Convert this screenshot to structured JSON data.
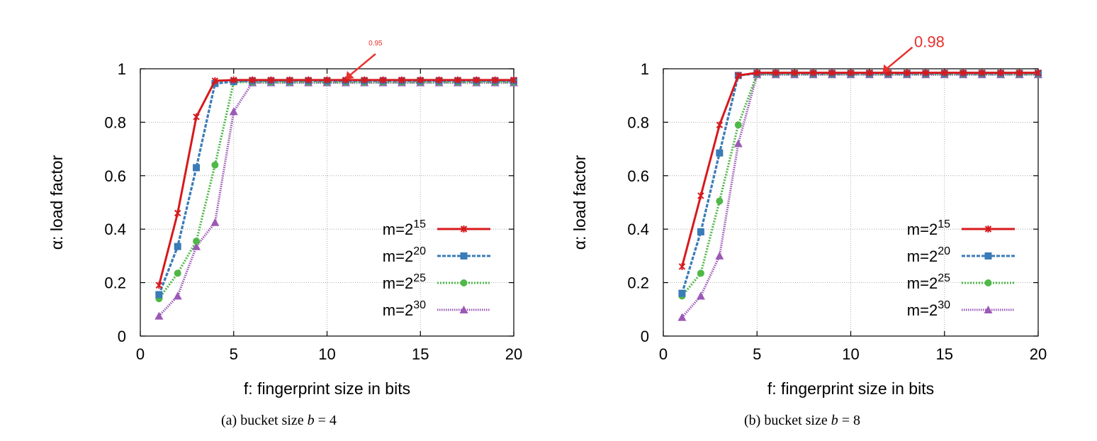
{
  "colors": {
    "m15": "#d7191c",
    "m20": "#3a7bb8",
    "m25": "#4fb848",
    "m30": "#9b59b6",
    "annotation": "#e8312f",
    "grid": "#9a9a9a",
    "axis": "#000000"
  },
  "chart_data": [
    {
      "type": "line",
      "id": "a",
      "xlabel": "f: fingerprint size in bits",
      "ylabel": "α: load factor",
      "xlim": [
        0,
        20
      ],
      "ylim": [
        0,
        1
      ],
      "xticks": [
        "0",
        "5",
        "10",
        "15",
        "20"
      ],
      "yticks": [
        "0",
        "0.2",
        "0.4",
        "0.6",
        "0.8",
        "1"
      ],
      "grid": true,
      "legend_position": "bottom-right",
      "caption": {
        "prefix": "(a)  bucket size ",
        "var": "b",
        "suffix": " = 4"
      },
      "annotation": {
        "text": "0.95",
        "x": 11,
        "y": 0.96
      },
      "x": [
        1,
        2,
        3,
        4,
        5,
        6,
        7,
        8,
        9,
        10,
        11,
        12,
        13,
        14,
        15,
        16,
        17,
        18,
        19,
        20
      ],
      "series": [
        {
          "base": "m=2",
          "exp": "15",
          "color_key": "m15",
          "marker": "star",
          "dash": "solid",
          "values": [
            0.19,
            0.46,
            0.82,
            0.955,
            0.958,
            0.958,
            0.958,
            0.958,
            0.958,
            0.958,
            0.958,
            0.958,
            0.958,
            0.958,
            0.958,
            0.958,
            0.958,
            0.958,
            0.958,
            0.958
          ]
        },
        {
          "base": "m=2",
          "exp": "20",
          "color_key": "m20",
          "marker": "square",
          "dash": "dense",
          "values": [
            0.155,
            0.335,
            0.63,
            0.945,
            0.952,
            0.955,
            0.955,
            0.955,
            0.955,
            0.955,
            0.955,
            0.955,
            0.955,
            0.955,
            0.955,
            0.955,
            0.955,
            0.955,
            0.955,
            0.955
          ]
        },
        {
          "base": "m=2",
          "exp": "25",
          "color_key": "m25",
          "marker": "circle",
          "dash": "dotted",
          "values": [
            0.14,
            0.235,
            0.355,
            0.64,
            0.95,
            0.95,
            0.95,
            0.95,
            0.95,
            0.95,
            0.95,
            0.95,
            0.95,
            0.95,
            0.95,
            0.95,
            0.95,
            0.95,
            0.95,
            0.95
          ]
        },
        {
          "base": "m=2",
          "exp": "30",
          "color_key": "m30",
          "marker": "triangle",
          "dash": "fine",
          "values": [
            0.075,
            0.15,
            0.335,
            0.425,
            0.84,
            0.948,
            0.948,
            0.948,
            0.948,
            0.948,
            0.948,
            0.948,
            0.948,
            0.948,
            0.948,
            0.948,
            0.948,
            0.948,
            0.948,
            0.948
          ]
        }
      ]
    },
    {
      "type": "line",
      "id": "b",
      "xlabel": "f: fingerprint size in bits",
      "ylabel": "α: load factor",
      "xlim": [
        0,
        20
      ],
      "ylim": [
        0,
        1
      ],
      "xticks": [
        "0",
        "5",
        "10",
        "15",
        "20"
      ],
      "yticks": [
        "0",
        "0.2",
        "0.4",
        "0.6",
        "0.8",
        "1"
      ],
      "grid": true,
      "legend_position": "bottom-right",
      "caption": {
        "prefix": "(b)  bucket size ",
        "var": "b",
        "suffix": " = 8"
      },
      "annotation": {
        "text": "0.98",
        "x": 11.7,
        "y": 0.985
      },
      "x": [
        1,
        2,
        3,
        4,
        5,
        6,
        7,
        8,
        9,
        10,
        11,
        12,
        13,
        14,
        15,
        16,
        17,
        18,
        19,
        20
      ],
      "series": [
        {
          "base": "m=2",
          "exp": "15",
          "color_key": "m15",
          "marker": "star",
          "dash": "solid",
          "values": [
            0.26,
            0.525,
            0.79,
            0.975,
            0.985,
            0.985,
            0.985,
            0.985,
            0.985,
            0.985,
            0.985,
            0.985,
            0.985,
            0.985,
            0.985,
            0.985,
            0.985,
            0.985,
            0.985,
            0.985
          ]
        },
        {
          "base": "m=2",
          "exp": "20",
          "color_key": "m20",
          "marker": "square",
          "dash": "dense",
          "values": [
            0.16,
            0.39,
            0.685,
            0.975,
            0.983,
            0.983,
            0.983,
            0.983,
            0.983,
            0.983,
            0.983,
            0.983,
            0.983,
            0.983,
            0.983,
            0.983,
            0.983,
            0.983,
            0.983,
            0.983
          ]
        },
        {
          "base": "m=2",
          "exp": "25",
          "color_key": "m25",
          "marker": "circle",
          "dash": "dotted",
          "values": [
            0.15,
            0.235,
            0.505,
            0.79,
            0.98,
            0.98,
            0.98,
            0.98,
            0.98,
            0.98,
            0.98,
            0.98,
            0.98,
            0.98,
            0.98,
            0.98,
            0.98,
            0.98,
            0.98,
            0.98
          ]
        },
        {
          "base": "m=2",
          "exp": "30",
          "color_key": "m30",
          "marker": "triangle",
          "dash": "fine",
          "values": [
            0.07,
            0.15,
            0.3,
            0.72,
            0.978,
            0.978,
            0.978,
            0.978,
            0.978,
            0.978,
            0.978,
            0.978,
            0.978,
            0.978,
            0.978,
            0.978,
            0.978,
            0.978,
            0.978,
            0.978
          ]
        }
      ]
    }
  ]
}
